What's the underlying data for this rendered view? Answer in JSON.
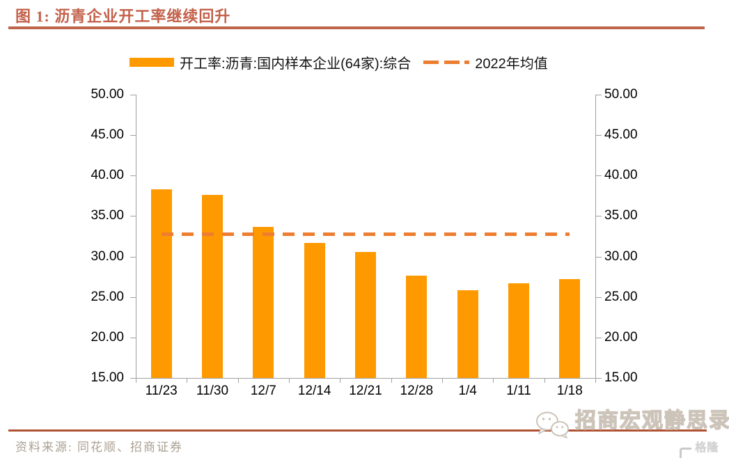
{
  "header": {
    "title": "图 1:  沥青企业开工率继续回升"
  },
  "chart_data": {
    "type": "bar",
    "categories": [
      "11/23",
      "11/30",
      "12/7",
      "12/14",
      "12/21",
      "12/28",
      "1/4",
      "1/11",
      "1/18"
    ],
    "series": [
      {
        "name": "开工率:沥青:国内样本企业(64家):综合",
        "type": "bar",
        "color": "#FF9900",
        "values": [
          38.3,
          37.6,
          33.7,
          31.7,
          30.6,
          27.6,
          25.8,
          26.7,
          27.2
        ]
      },
      {
        "name": "2022年均值",
        "type": "dashed-line",
        "color": "#ED7D31",
        "value": 32.8
      }
    ],
    "ylim": [
      15,
      50
    ],
    "ytick_step": 5,
    "ytick_format": "0.00",
    "y_axis_sides": [
      "left",
      "right"
    ],
    "legend_position": "top-center",
    "grid": false,
    "xlabel": "",
    "ylabel": ""
  },
  "footer": {
    "source": "资料来源: 同花顺、招商证券",
    "watermark": "招商宏观静思录",
    "logo_text": "格隆汇"
  },
  "colors": {
    "bar": "#FF9900",
    "mean_line": "#ED7D31",
    "title_text": "#C3604A",
    "rule": "#BE6449",
    "source_text": "#ABA092",
    "axis_line": "#A0A0A0",
    "axis_text": "#000000",
    "watermark_outline": "#CCC3B9",
    "logo_gray": "#C9C9C9"
  }
}
